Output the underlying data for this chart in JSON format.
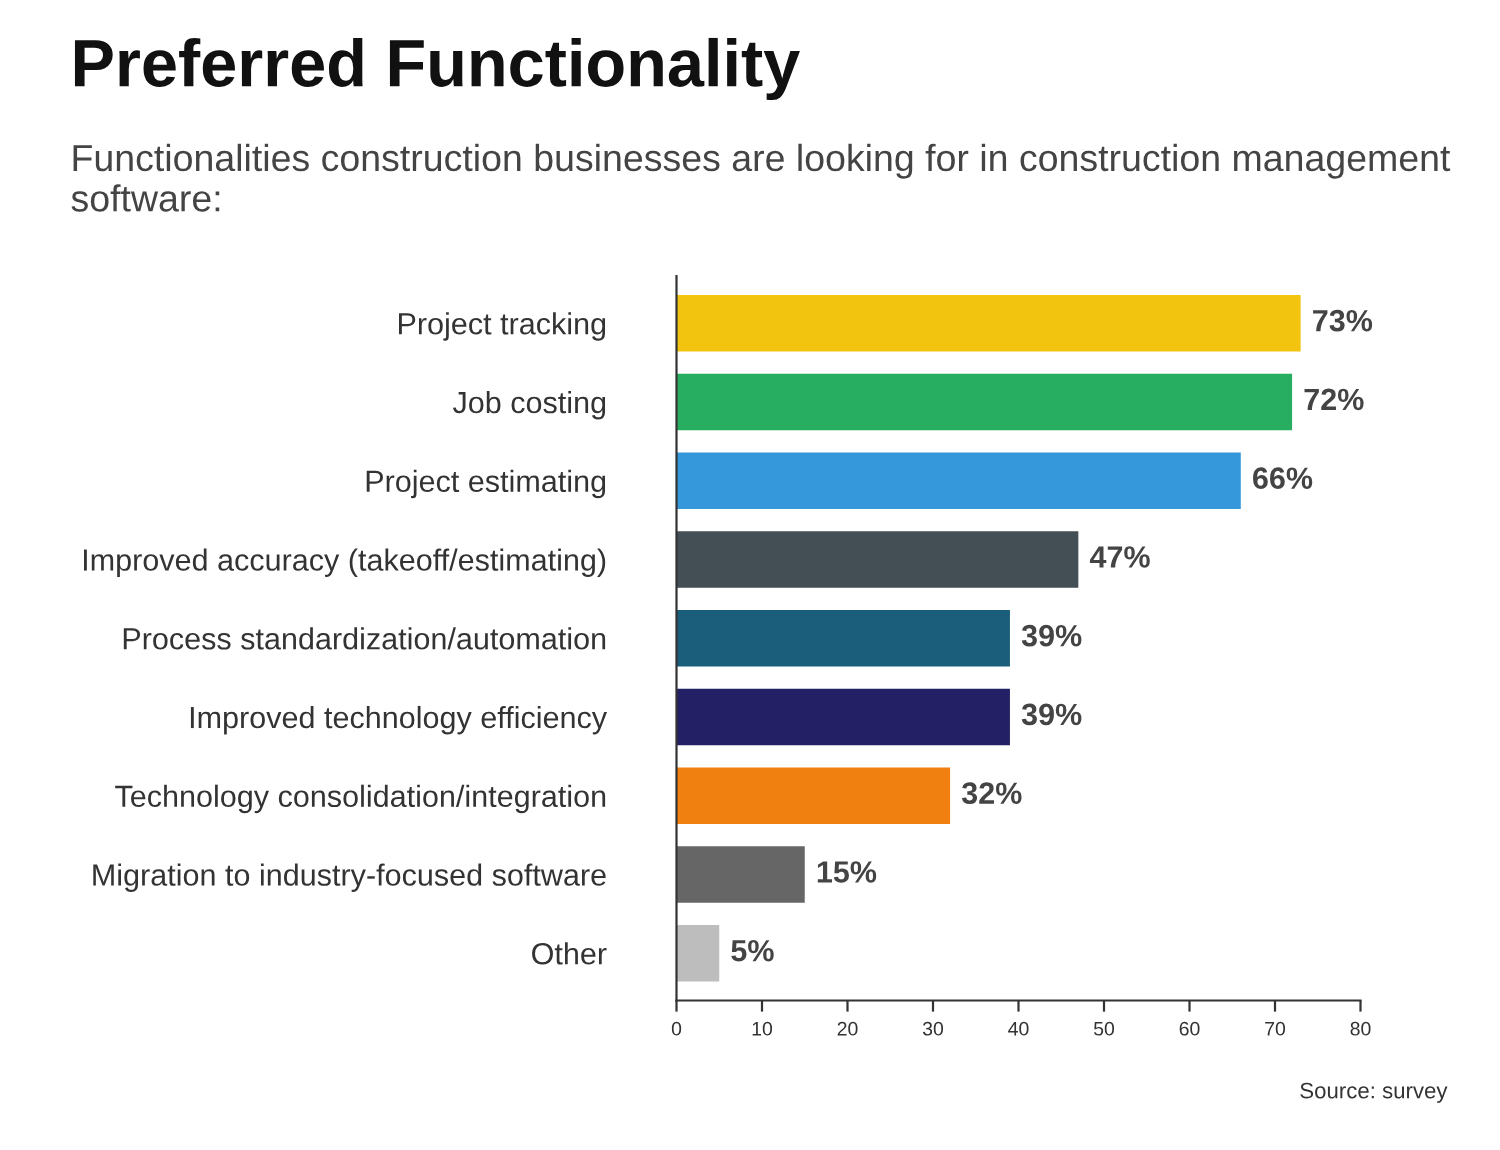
{
  "chart_data": {
    "type": "bar",
    "orientation": "horizontal",
    "title": "Preferred Functionality",
    "subtitle": "Functionalities construction businesses are looking for in construction management software:",
    "categories": [
      "Project tracking",
      "Job costing",
      "Project estimating",
      "Improved accuracy (takeoff/estimating)",
      "Process standardization/automation",
      "Improved technology efficiency",
      "Technology consolidation/integration",
      "Migration to industry-focused software",
      "Other"
    ],
    "values": [
      73,
      72,
      66,
      47,
      39,
      39,
      32,
      15,
      5
    ],
    "colors": [
      "#f2c40f",
      "#27ae60",
      "#3498db",
      "#434e55",
      "#1b5e7b",
      "#242066",
      "#f0800f",
      "#666666",
      "#bdbdbd"
    ],
    "value_labels": [
      "73%",
      "72%",
      "66%",
      "47%",
      "39%",
      "39%",
      "32%",
      "15%",
      "5%"
    ],
    "xlim": [
      0,
      80
    ],
    "xticks": [
      0,
      10,
      20,
      30,
      40,
      50,
      60,
      70,
      80
    ],
    "grid": false,
    "annotations": [
      "Source: survey"
    ]
  }
}
